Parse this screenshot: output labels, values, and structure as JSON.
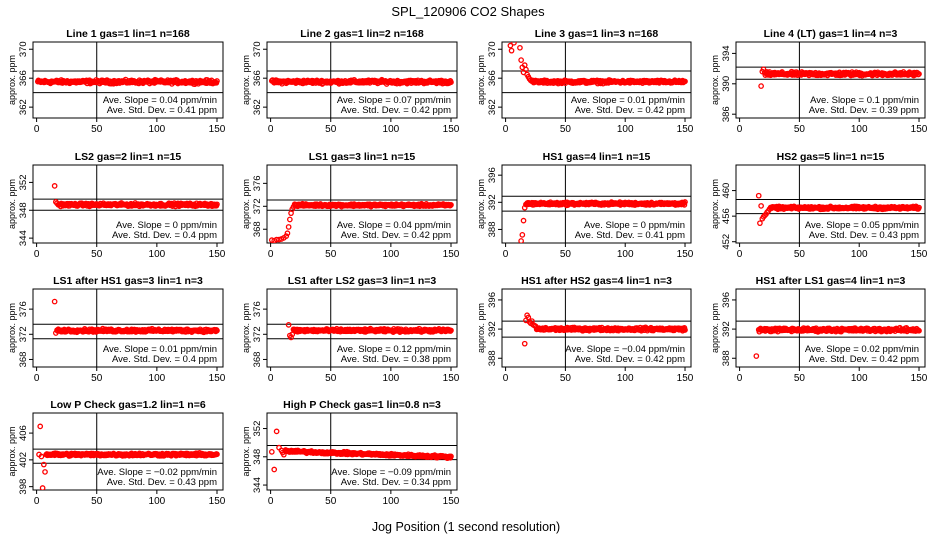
{
  "title": "SPL_120906  CO2 Shapes",
  "xlabel": "Jog Position (1 second resolution)",
  "colors": {
    "points": "#ff0000",
    "frame": "#000000",
    "background": "#ffffff"
  },
  "chart_data": [
    {
      "type": "scatter",
      "title": "Line 1 gas=1 lin=1 n=168",
      "ylabel": "approx. ppm",
      "xlim": [
        -3,
        155
      ],
      "ylim": [
        360.5,
        371
      ],
      "xticks": [
        0,
        50,
        100,
        150
      ],
      "yticks": [
        362,
        366,
        370
      ],
      "mean": 365.5,
      "std_lines": [
        364.0,
        367.0
      ],
      "annotation": [
        "Ave. Slope = 0.04  ppm/min",
        "Ave. Std. Dev. = 0.41  ppm"
      ],
      "series": [
        {
          "x_start": 1,
          "x_end": 150,
          "level": 365.5,
          "noise": 0.35,
          "slope": 0,
          "transient": []
        }
      ]
    },
    {
      "type": "scatter",
      "title": "Line 2 gas=1 lin=2 n=168",
      "ylabel": "approx. ppm",
      "xlim": [
        -3,
        155
      ],
      "ylim": [
        360.5,
        371
      ],
      "xticks": [
        0,
        50,
        100,
        150
      ],
      "yticks": [
        362,
        366,
        370
      ],
      "mean": 365.5,
      "std_lines": [
        364.0,
        367.0
      ],
      "annotation": [
        "Ave. Slope = 0.07  ppm/min",
        "Ave. Std. Dev. = 0.42  ppm"
      ],
      "series": [
        {
          "x_start": 1,
          "x_end": 150,
          "level": 365.5,
          "noise": 0.35,
          "slope": 0,
          "transient": []
        }
      ]
    },
    {
      "type": "scatter",
      "title": "Line 3 gas=1 lin=3 n=168",
      "ylabel": "approx. ppm",
      "xlim": [
        -3,
        155
      ],
      "ylim": [
        360.5,
        371
      ],
      "xticks": [
        0,
        50,
        100,
        150
      ],
      "yticks": [
        362,
        366,
        370
      ],
      "mean": 365.5,
      "std_lines": [
        364.0,
        367.0
      ],
      "annotation": [
        "Ave. Slope = 0.01  ppm/min",
        "Ave. Std. Dev. = 0.42  ppm"
      ],
      "series": [
        {
          "x_start": 22,
          "x_end": 150,
          "level": 365.5,
          "noise": 0.3,
          "slope": 0,
          "transient": [
            [
              4,
              370.5
            ],
            [
              5,
              369.8
            ],
            [
              7,
              370.9
            ],
            [
              12,
              370.2
            ],
            [
              13,
              368.5
            ],
            [
              14,
              367.5
            ],
            [
              15,
              366.8
            ],
            [
              16,
              367.8
            ],
            [
              17,
              367.2
            ],
            [
              18,
              366.5
            ],
            [
              19,
              366.2
            ],
            [
              20,
              365.9
            ],
            [
              21,
              365.7
            ]
          ]
        }
      ]
    },
    {
      "type": "scatter",
      "title": "Line 4 (LT) gas=1 lin=4 n=3",
      "ylabel": "approx. ppm",
      "xlim": [
        -3,
        155
      ],
      "ylim": [
        385.5,
        395.5
      ],
      "xticks": [
        0,
        50,
        100,
        150
      ],
      "yticks": [
        386,
        390,
        394
      ],
      "mean": 391.2,
      "std_lines": [
        390.6,
        392.2
      ],
      "annotation": [
        "Ave. Slope = 0.1  ppm/min",
        "Ave. Std. Dev. = 0.39  ppm"
      ],
      "series": [
        {
          "x_start": 21,
          "x_end": 150,
          "level": 391.3,
          "noise": 0.35,
          "slope": 0,
          "transient": [
            [
              18,
              389.7
            ],
            [
              19,
              391.6
            ],
            [
              20,
              391.9
            ]
          ]
        }
      ]
    },
    {
      "type": "scatter",
      "title": "LS2 gas=2 lin=1 n=15",
      "ylabel": "approx. ppm",
      "xlim": [
        -3,
        155
      ],
      "ylim": [
        343.3,
        354.5
      ],
      "xticks": [
        0,
        50,
        100,
        150
      ],
      "yticks": [
        344,
        348,
        352
      ],
      "mean": 348.8,
      "std_lines": [
        348.0,
        349.6
      ],
      "annotation": [
        "Ave. Slope = 0  ppm/min",
        "Ave. Std. Dev. = 0.4  ppm"
      ],
      "series": [
        {
          "x_start": 18,
          "x_end": 150,
          "level": 348.8,
          "noise": 0.3,
          "slope": 0,
          "transient": [
            [
              15,
              351.5
            ],
            [
              16,
              349.2
            ],
            [
              17,
              349.0
            ]
          ]
        }
      ]
    },
    {
      "type": "scatter",
      "title": "LS1 gas=3 lin=1 n=15",
      "ylabel": "approx. ppm",
      "xlim": [
        -3,
        155
      ],
      "ylim": [
        365.6,
        379.2
      ],
      "xticks": [
        0,
        50,
        100,
        150
      ],
      "yticks": [
        368,
        372,
        376
      ],
      "mean": 372.1,
      "std_lines": [
        371.3,
        373.1
      ],
      "annotation": [
        "Ave. Slope = 0.04  ppm/min",
        "Ave. Std. Dev. = 0.42  ppm"
      ],
      "series": [
        {
          "x_start": 20,
          "x_end": 150,
          "level": 372.2,
          "noise": 0.3,
          "slope": 0,
          "transient": [
            [
              1,
              366.1
            ],
            [
              3,
              366.0
            ],
            [
              5,
              366.2
            ],
            [
              7,
              366.2
            ],
            [
              9,
              366.3
            ],
            [
              11,
              366.5
            ],
            [
              13,
              366.8
            ],
            [
              14,
              367.3
            ],
            [
              15,
              368.4
            ],
            [
              16,
              369.7
            ],
            [
              17,
              370.8
            ],
            [
              18,
              371.5
            ],
            [
              19,
              371.9
            ]
          ]
        }
      ]
    },
    {
      "type": "scatter",
      "title": "HS1 gas=4 lin=1 n=15",
      "ylabel": "approx. ppm",
      "xlim": [
        -3,
        155
      ],
      "ylim": [
        386,
        397.5
      ],
      "xticks": [
        0,
        50,
        100,
        150
      ],
      "yticks": [
        388,
        392,
        396
      ],
      "mean": 391.8,
      "std_lines": [
        390.7,
        392.9
      ],
      "annotation": [
        "Ave. Slope = 0  ppm/min",
        "Ave. Std. Dev. = 0.41  ppm"
      ],
      "series": [
        {
          "x_start": 17,
          "x_end": 150,
          "level": 391.8,
          "noise": 0.3,
          "slope": 0,
          "transient": [
            [
              13,
              386.3
            ],
            [
              14,
              387.2
            ],
            [
              15,
              389.3
            ],
            [
              16,
              391.2
            ]
          ]
        }
      ]
    },
    {
      "type": "scatter",
      "title": "HS2 gas=5 lin=1 n=15",
      "ylabel": "approx. ppm",
      "xlim": [
        -3,
        155
      ],
      "ylim": [
        451.8,
        464
      ],
      "xticks": [
        0,
        50,
        100,
        150
      ],
      "yticks": [
        452,
        456,
        460
      ],
      "mean": 457.3,
      "std_lines": [
        456.4,
        458.6
      ],
      "annotation": [
        "Ave. Slope = 0.05  ppm/min",
        "Ave. Std. Dev. = 0.43  ppm"
      ],
      "series": [
        {
          "x_start": 26,
          "x_end": 150,
          "level": 457.3,
          "noise": 0.3,
          "slope": 0,
          "transient": [
            [
              16,
              459.2
            ],
            [
              17,
              454.9
            ],
            [
              18,
              457.6
            ],
            [
              19,
              455.6
            ],
            [
              20,
              455.9
            ],
            [
              21,
              456.1
            ],
            [
              22,
              456.3
            ],
            [
              23,
              456.6
            ],
            [
              24,
              456.8
            ],
            [
              25,
              457.1
            ]
          ]
        }
      ]
    },
    {
      "type": "scatter",
      "title": "LS1 after HS1 gas=3 lin=1 n=3",
      "ylabel": "approx. ppm",
      "xlim": [
        -3,
        155
      ],
      "ylim": [
        366.8,
        379.2
      ],
      "xticks": [
        0,
        50,
        100,
        150
      ],
      "yticks": [
        368,
        372,
        376
      ],
      "mean": 372.5,
      "std_lines": [
        371.3,
        373.6
      ],
      "annotation": [
        "Ave. Slope = 0.01  ppm/min",
        "Ave. Std. Dev. = 0.4  ppm"
      ],
      "series": [
        {
          "x_start": 17,
          "x_end": 150,
          "level": 372.6,
          "noise": 0.35,
          "slope": 0,
          "transient": [
            [
              15,
              377.2
            ],
            [
              16,
              372.2
            ]
          ]
        }
      ]
    },
    {
      "type": "scatter",
      "title": "LS1 after LS2 gas=3 lin=1 n=3",
      "ylabel": "approx. ppm",
      "xlim": [
        -3,
        155
      ],
      "ylim": [
        366.8,
        379.2
      ],
      "xticks": [
        0,
        50,
        100,
        150
      ],
      "yticks": [
        368,
        372,
        376
      ],
      "mean": 372.3,
      "std_lines": [
        371.3,
        373.6
      ],
      "annotation": [
        "Ave. Slope = 0.12  ppm/min",
        "Ave. Std. Dev. = 0.38  ppm"
      ],
      "series": [
        {
          "x_start": 19,
          "x_end": 150,
          "level": 372.6,
          "noise": 0.35,
          "slope": 0,
          "transient": [
            [
              15,
              373.5
            ],
            [
              16,
              371.8
            ],
            [
              17,
              371.5
            ],
            [
              18,
              372.0
            ]
          ]
        }
      ]
    },
    {
      "type": "scatter",
      "title": "HS1 after HS2 gas=4 lin=1 n=3",
      "ylabel": "approx. ppm",
      "xlim": [
        -3,
        155
      ],
      "ylim": [
        386.8,
        397.5
      ],
      "xticks": [
        0,
        50,
        100,
        150
      ],
      "yticks": [
        388,
        392,
        396
      ],
      "mean": 392.0,
      "std_lines": [
        390.9,
        393.1
      ],
      "annotation": [
        "Ave. Slope = −0.04  ppm/min",
        "Ave. Std. Dev. = 0.42  ppm"
      ],
      "series": [
        {
          "x_start": 26,
          "x_end": 150,
          "level": 392.0,
          "noise": 0.3,
          "slope": 0,
          "transient": [
            [
              16,
              390.0
            ],
            [
              17,
              393.2
            ],
            [
              18,
              393.9
            ],
            [
              19,
              393.6
            ],
            [
              20,
              393.0
            ],
            [
              21,
              392.8
            ],
            [
              22,
              393.1
            ],
            [
              23,
              392.6
            ],
            [
              24,
              392.5
            ],
            [
              25,
              392.4
            ]
          ]
        }
      ]
    },
    {
      "type": "scatter",
      "title": "HS1 after LS1 gas=4 lin=1 n=3",
      "ylabel": "approx. ppm",
      "xlim": [
        -3,
        155
      ],
      "ylim": [
        386.8,
        397.5
      ],
      "xticks": [
        0,
        50,
        100,
        150
      ],
      "yticks": [
        388,
        392,
        396
      ],
      "mean": 391.9,
      "std_lines": [
        390.9,
        393.1
      ],
      "annotation": [
        "Ave. Slope = 0.02  ppm/min",
        "Ave. Std. Dev. = 0.42  ppm"
      ],
      "series": [
        {
          "x_start": 16,
          "x_end": 150,
          "level": 391.9,
          "noise": 0.35,
          "slope": 0,
          "transient": [
            [
              14,
              388.3
            ]
          ]
        }
      ]
    },
    {
      "type": "scatter",
      "title": "Low P Check gas=1.2 lin=1 n=6",
      "ylabel": "approx. ppm",
      "xlim": [
        -3,
        155
      ],
      "ylim": [
        397.5,
        409
      ],
      "xticks": [
        0,
        50,
        100,
        150
      ],
      "yticks": [
        398,
        402,
        406
      ],
      "mean": 402.6,
      "std_lines": [
        401.5,
        403.6
      ],
      "annotation": [
        "Ave. Slope = −0.02  ppm/min",
        "Ave. Std. Dev. = 0.43  ppm"
      ],
      "series": [
        {
          "x_start": 8,
          "x_end": 150,
          "level": 402.8,
          "noise": 0.3,
          "slope": 0,
          "transient": [
            [
              2,
              402.8
            ],
            [
              3,
              407.0
            ],
            [
              4,
              402.5
            ],
            [
              5,
              397.8
            ],
            [
              6,
              401.3
            ],
            [
              7,
              400.2
            ]
          ]
        }
      ]
    },
    {
      "type": "scatter",
      "title": "High P Check gas=1 lin=0.8 n=3",
      "ylabel": "approx. ppm",
      "xlim": [
        -3,
        155
      ],
      "ylim": [
        343.3,
        354.2
      ],
      "xticks": [
        0,
        50,
        100,
        150
      ],
      "yticks": [
        344,
        348,
        352
      ],
      "mean": 348.5,
      "std_lines": [
        347.6,
        349.6
      ],
      "annotation": [
        "Ave. Slope = −0.09  ppm/min",
        "Ave. Std. Dev. = 0.34  ppm"
      ],
      "series": [
        {
          "x_start": 12,
          "x_end": 150,
          "level": 348.8,
          "noise": 0.25,
          "slope": -0.006,
          "transient": [
            [
              1,
              348.7
            ],
            [
              3,
              346.2
            ],
            [
              5,
              351.6
            ],
            [
              7,
              349.3
            ],
            [
              9,
              348.9
            ],
            [
              10,
              348.6
            ],
            [
              11,
              348.3
            ]
          ]
        }
      ]
    }
  ]
}
